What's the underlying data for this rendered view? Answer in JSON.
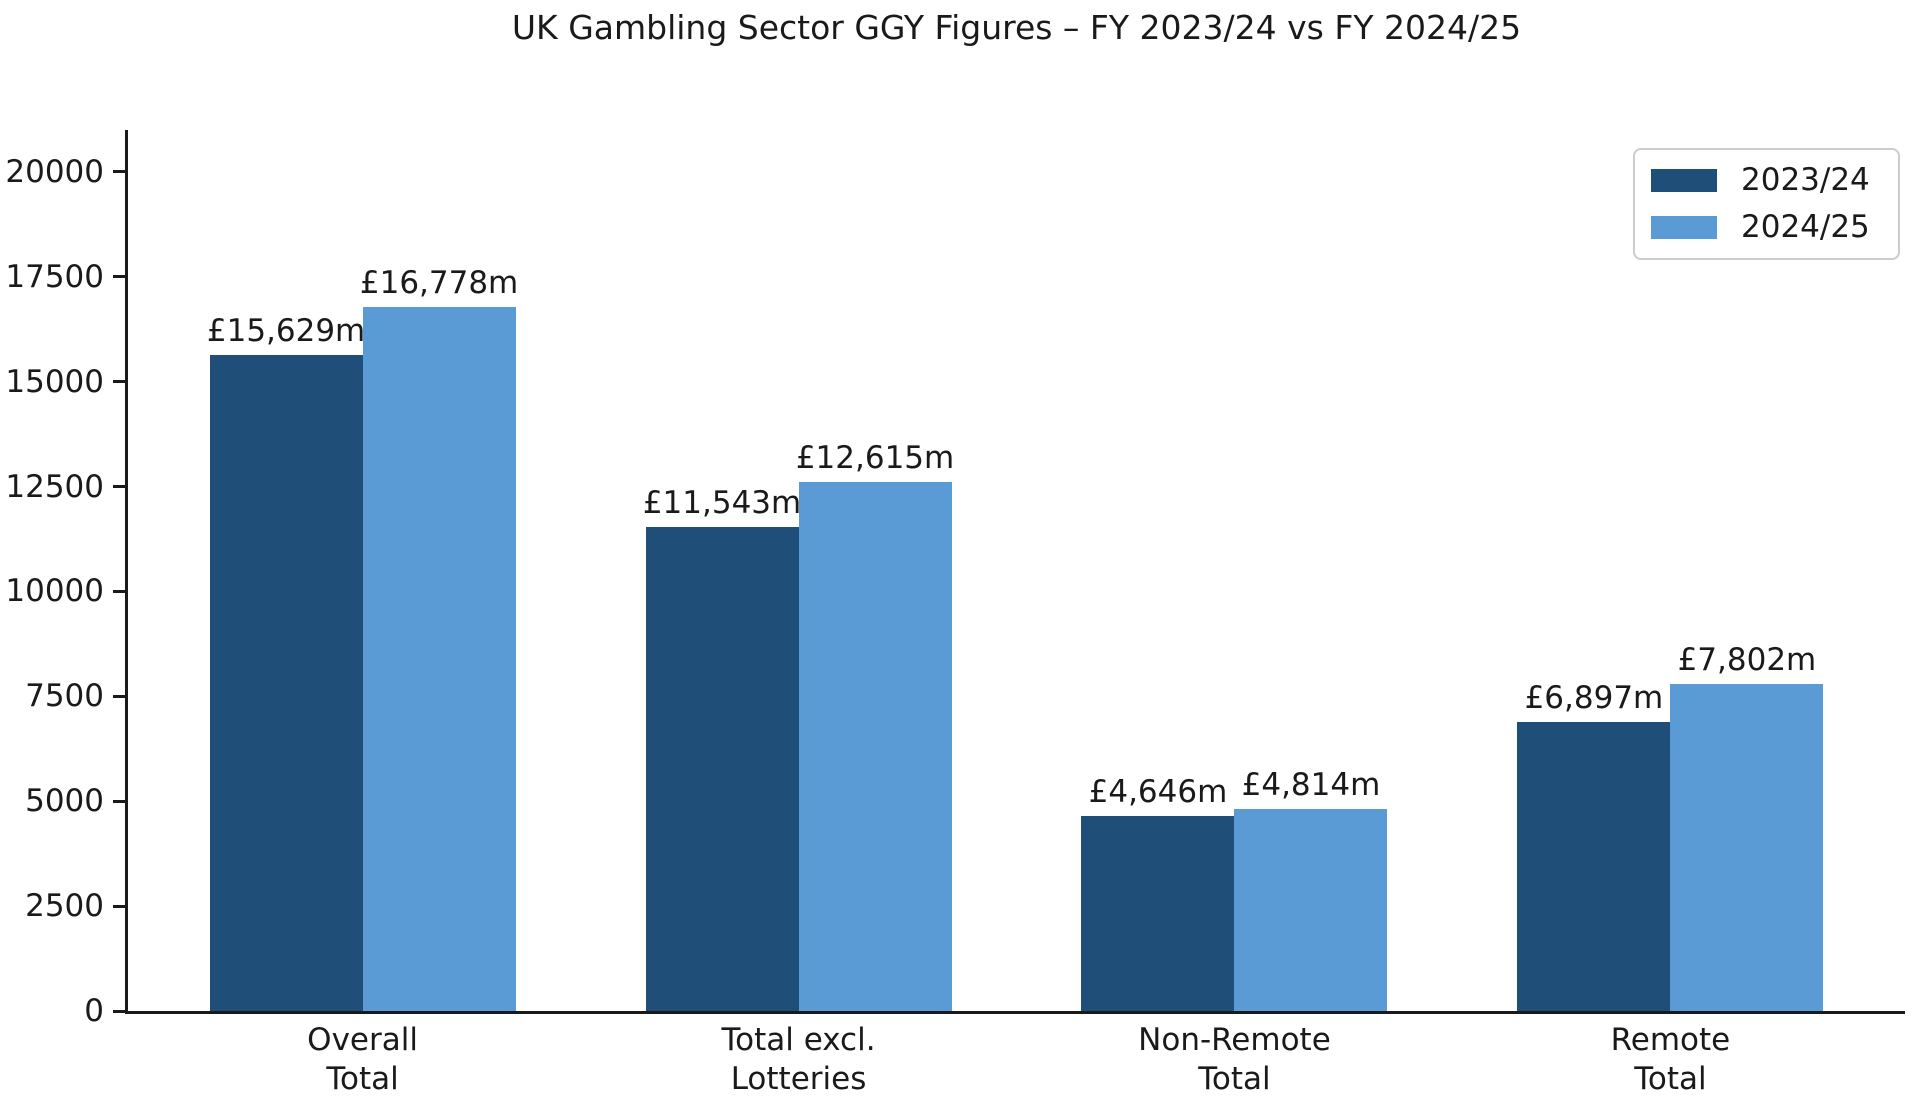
{
  "chart_data": {
    "type": "bar",
    "title": "UK Gambling Sector GGY Figures – FY 2023/24 vs FY 2024/25",
    "categories": [
      "Overall\nTotal",
      "Total excl.\nLotteries",
      "Non-Remote\nTotal",
      "Remote\nTotal"
    ],
    "series": [
      {
        "name": "2023/24",
        "color": "#1f4e79",
        "values": [
          15629,
          11543,
          4646,
          6897
        ],
        "labels": [
          "£15,629m",
          "£11,543m",
          "£4,646m",
          "£6,897m"
        ]
      },
      {
        "name": "2024/25",
        "color": "#5b9bd5",
        "values": [
          16778,
          12615,
          4814,
          7802
        ],
        "labels": [
          "£16,778m",
          "£12,615m",
          "£4,814m",
          "£7,802m"
        ]
      }
    ],
    "yticks": [
      0,
      2500,
      5000,
      7500,
      10000,
      12500,
      15000,
      17500,
      20000
    ],
    "ylim": [
      0,
      21000
    ],
    "xlabel": "",
    "ylabel": "",
    "grid": false,
    "legend_position": "upper right",
    "axis_color": "#1a1a1a",
    "text_color": "#1a1a1a",
    "background_color": "#ffffff"
  }
}
